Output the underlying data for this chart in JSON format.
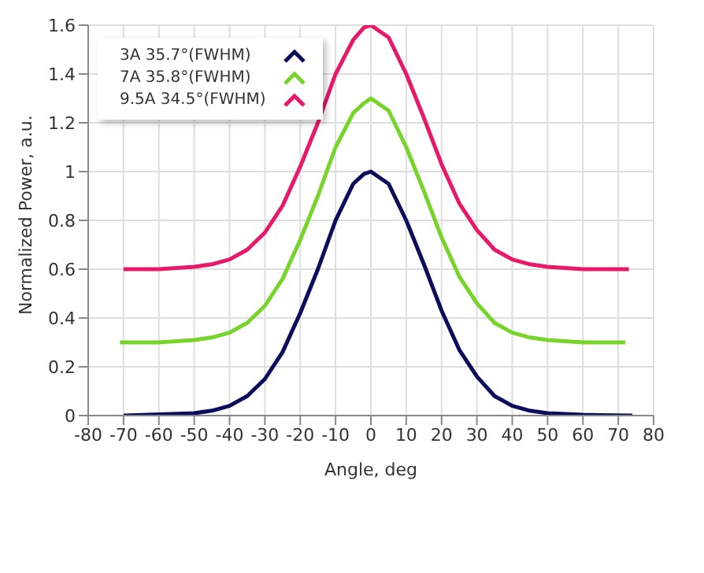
{
  "chart_data": {
    "type": "line",
    "xlabel": "Angle, deg",
    "ylabel": "Normalized Power, a.u.",
    "xlim": [
      -80,
      80
    ],
    "xticks": [
      -80,
      -70,
      -60,
      -50,
      -40,
      -30,
      -20,
      -10,
      0,
      10,
      20,
      30,
      40,
      50,
      60,
      70,
      80
    ],
    "ylim": [
      0,
      1.6
    ],
    "yticks": [
      0,
      0.2,
      0.4,
      0.6,
      0.8,
      {
        "value": 1,
        "label": "1"
      },
      1.2,
      1.4,
      1.6
    ],
    "grid": true,
    "legend": "top left",
    "marker": "none",
    "line_style": "solid",
    "series": [
      {
        "name": "3A 35.7°(FWHM)",
        "color": "#0d0d5e",
        "x": [
          -70,
          -60,
          -50,
          -45,
          -40,
          -35,
          -30,
          -25,
          -20,
          -15,
          -10,
          -5,
          -2,
          0,
          2,
          5,
          10,
          15,
          20,
          25,
          30,
          35,
          40,
          45,
          50,
          60,
          74
        ],
        "values": [
          0,
          0.005,
          0.01,
          0.02,
          0.04,
          0.08,
          0.15,
          0.26,
          0.42,
          0.6,
          0.8,
          0.95,
          0.99,
          1.0,
          0.98,
          0.95,
          0.8,
          0.62,
          0.43,
          0.27,
          0.16,
          0.08,
          0.04,
          0.02,
          0.01,
          0.003,
          0
        ]
      },
      {
        "name": "7A 35.8°(FWHM)",
        "color": "#77d42a",
        "x": [
          -71,
          -60,
          -50,
          -45,
          -40,
          -35,
          -30,
          -25,
          -20,
          -15,
          -10,
          -5,
          -2,
          0,
          2,
          5,
          10,
          15,
          20,
          25,
          30,
          35,
          40,
          45,
          50,
          60,
          72
        ],
        "values": [
          0.3,
          0.3,
          0.31,
          0.32,
          0.34,
          0.38,
          0.45,
          0.56,
          0.72,
          0.9,
          1.1,
          1.24,
          1.28,
          1.3,
          1.28,
          1.25,
          1.1,
          0.92,
          0.73,
          0.57,
          0.46,
          0.38,
          0.34,
          0.32,
          0.31,
          0.3,
          0.3
        ]
      },
      {
        "name": "9.5A 34.5°(FWHM)",
        "color": "#e8186a",
        "x": [
          -70,
          -60,
          -50,
          -45,
          -40,
          -35,
          -30,
          -25,
          -20,
          -15,
          -10,
          -5,
          -2,
          0,
          2,
          5,
          10,
          15,
          20,
          25,
          30,
          35,
          40,
          45,
          50,
          60,
          73
        ],
        "values": [
          0.6,
          0.6,
          0.61,
          0.62,
          0.64,
          0.68,
          0.75,
          0.86,
          1.02,
          1.2,
          1.4,
          1.54,
          1.59,
          1.6,
          1.58,
          1.55,
          1.4,
          1.22,
          1.03,
          0.87,
          0.76,
          0.68,
          0.64,
          0.62,
          0.61,
          0.6,
          0.6
        ]
      }
    ]
  }
}
